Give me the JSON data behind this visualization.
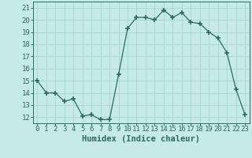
{
  "x": [
    0,
    1,
    2,
    3,
    4,
    5,
    6,
    7,
    8,
    9,
    10,
    11,
    12,
    13,
    14,
    15,
    16,
    17,
    18,
    19,
    20,
    21,
    22,
    23
  ],
  "y": [
    15,
    14,
    14,
    13.3,
    13.5,
    12.1,
    12.2,
    11.8,
    11.8,
    15.5,
    19.3,
    20.2,
    20.2,
    20.0,
    20.8,
    20.2,
    20.6,
    19.8,
    19.7,
    19.0,
    18.5,
    17.3,
    14.3,
    12.2
  ],
  "line_color": "#2e6b5e",
  "marker": "+",
  "marker_size": 4,
  "bg_color": "#c5eae7",
  "grid_color": "#a8d5d1",
  "xlabel": "Humidex (Indice chaleur)",
  "xlim": [
    -0.5,
    23.5
  ],
  "ylim": [
    11.5,
    21.5
  ],
  "xticks": [
    0,
    1,
    2,
    3,
    4,
    5,
    6,
    7,
    8,
    9,
    10,
    11,
    12,
    13,
    14,
    15,
    16,
    17,
    18,
    19,
    20,
    21,
    22,
    23
  ],
  "yticks": [
    12,
    13,
    14,
    15,
    16,
    17,
    18,
    19,
    20,
    21
  ],
  "xlabel_fontsize": 7.5,
  "tick_fontsize": 6.5,
  "lw": 0.9
}
